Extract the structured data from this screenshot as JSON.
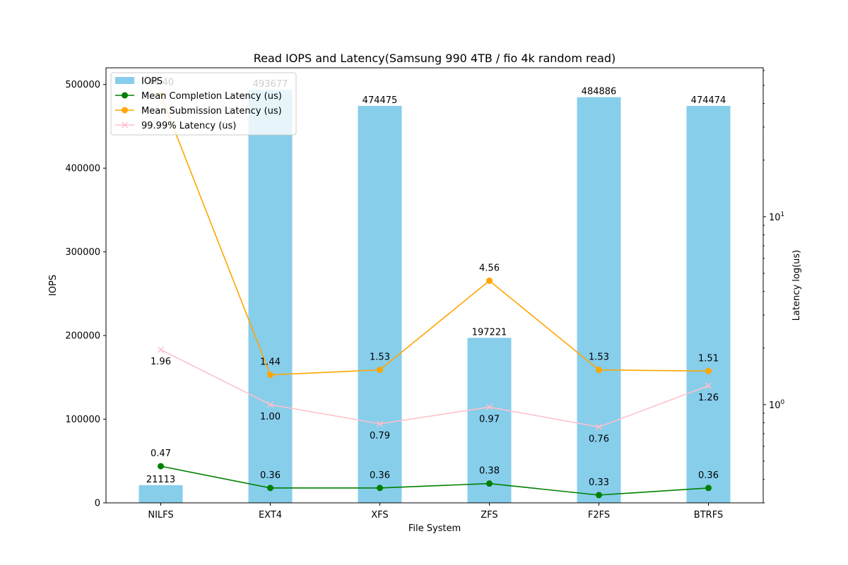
{
  "chart_data": {
    "type": "bar",
    "title": "Read IOPS and Latency(Samsung 990 4TB / fio 4k random read)",
    "xlabel": "File System",
    "ylabel": "IOPS",
    "ylabel_right": "Latency log(us)",
    "categories": [
      "NILFS",
      "EXT4",
      "XFS",
      "ZFS",
      "F2FS",
      "BTRFS"
    ],
    "ylim": [
      0,
      520000
    ],
    "yticks": [
      0,
      100000,
      200000,
      300000,
      400000,
      500000
    ],
    "y2_scale": "log",
    "y2lim": [
      0.3,
      62
    ],
    "y2ticks": [
      {
        "value": 1,
        "label": "10",
        "exp": "0"
      },
      {
        "value": 10,
        "label": "10",
        "exp": "1"
      }
    ],
    "bars": {
      "name": "IOPS",
      "color": "#87ceeb",
      "values": [
        21113,
        493677,
        474475,
        197221,
        484886,
        474474
      ],
      "labels": [
        "21113",
        "493677",
        "474475",
        "197221",
        "484886",
        "474474"
      ]
    },
    "series": [
      {
        "name": "Mean Completion Latency (us)",
        "color": "#008000",
        "marker": "circle",
        "values": [
          0.47,
          0.36,
          0.36,
          0.38,
          0.33,
          0.36
        ],
        "labels": [
          "0.47",
          "0.36",
          "0.36",
          "0.38",
          "0.33",
          "0.36"
        ],
        "label_pos": "above"
      },
      {
        "name": "Mean Submission Latency (us)",
        "color": "#ffa500",
        "marker": "circle",
        "values": [
          44.4,
          1.44,
          1.53,
          4.56,
          1.53,
          1.51
        ],
        "labels": [
          "44.40",
          "1.44",
          "1.53",
          "4.56",
          "1.53",
          "1.51"
        ],
        "label_pos": "above"
      },
      {
        "name": "99.99% Latency (us)",
        "color": "#ffc0cb",
        "marker": "x",
        "values": [
          1.96,
          1.0,
          0.79,
          0.97,
          0.76,
          1.26
        ],
        "labels": [
          "1.96",
          "1.00",
          "0.79",
          "0.97",
          "0.76",
          "1.26"
        ],
        "label_pos": "below"
      }
    ],
    "legend": {
      "placement": "top-left",
      "entries": [
        "IOPS",
        "Mean Completion Latency (us)",
        "Mean Submission Latency (us)",
        "99.99% Latency (us)"
      ]
    },
    "grid": false
  }
}
